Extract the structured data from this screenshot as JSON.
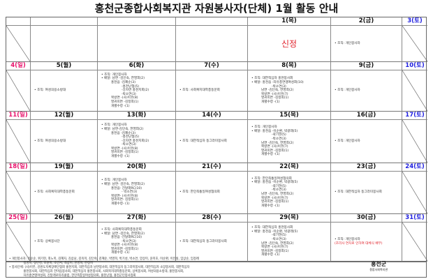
{
  "title": "홍천군종합사회복지관 자원봉사자(단체) 1월 활동 안내",
  "colors": {
    "sunday": "#e8106a",
    "saturday": "#2020e0",
    "weekday": "#111111",
    "note": "#e0202a"
  },
  "weeks": [
    {
      "days": [
        {
          "label": "",
          "c": "weekday"
        },
        {
          "label": "",
          "c": "weekday"
        },
        {
          "label": "",
          "c": "weekday"
        },
        {
          "label": "",
          "c": "weekday"
        },
        {
          "label": "1(목)",
          "c": "weekday"
        },
        {
          "label": "2(금)",
          "c": "weekday"
        },
        {
          "label": "3(토)",
          "c": "saturday"
        }
      ],
      "cells": [
        {
          "slash": true
        },
        {
          "lines": []
        },
        {
          "lines": []
        },
        {
          "lines": []
        },
        {
          "big": "신정"
        },
        {
          "lines": [
            {
              "t": "• 조직: 개인봉사자"
            }
          ]
        },
        {
          "slash": true
        }
      ]
    },
    {
      "days": [
        {
          "label": "4(일)",
          "c": "sunday"
        },
        {
          "label": "5(월)",
          "c": "weekday"
        },
        {
          "label": "6(화)",
          "c": "weekday"
        },
        {
          "label": "7(수)",
          "c": "weekday"
        },
        {
          "label": "8(목)",
          "c": "weekday"
        },
        {
          "label": "9(금)",
          "c": "weekday"
        },
        {
          "label": "10(토)",
          "c": "saturday"
        }
      ],
      "cells": [
        {
          "slash": true
        },
        {
          "lines": [
            {
              "t": "• 조직: 여성의용소방대"
            }
          ]
        },
        {
          "lines": [
            {
              "t": "• 조직: 개인봉사자"
            },
            {
              "t": " "
            },
            {
              "t": "• 배달: 남면 -김인숙, 한영희(2)"
            },
            {
              "t": "홍천읍 -김혜순(3)",
              "i": 1
            },
            {
              "t": "-홍천난협(5)",
              "i": 2
            },
            {
              "t": "-강차연 홍천지회(2)",
              "i": 2
            },
            {
              "t": "-박소연(3)",
              "i": 2
            },
            {
              "t": "북방면 -(사)이웃(8)",
              "i": 1
            },
            {
              "t": "영귀미면 -김정희(1)",
              "i": 1
            },
            {
              "t": "개별수령 -(1)",
              "i": 1
            }
          ]
        },
        {
          "lines": [
            {
              "t": "• 조직: 사회복지대학총동문회"
            }
          ]
        },
        {
          "lines": [
            {
              "t": "• 조직: 대한적십자 홍천봉사회"
            },
            {
              "t": " "
            },
            {
              "t": "• 배달: 홍천읍 -자유총연맹여성회(10)"
            },
            {
              "t": "-박소연(3)",
              "i": 2
            },
            {
              "t": "남면 -김인숙, 한영희(2)",
              "i": 1
            },
            {
              "t": "북방면 -(사)이웃(7)",
              "i": 1
            },
            {
              "t": "영귀미면 -김정희(1)",
              "i": 1
            },
            {
              "t": "개별수령 -(1)",
              "i": 1
            }
          ]
        },
        {
          "lines": [
            {
              "t": "• 조직: 개인봉사자"
            }
          ]
        },
        {
          "slash": true
        }
      ]
    },
    {
      "days": [
        {
          "label": "11(일)",
          "c": "sunday"
        },
        {
          "label": "12(월)",
          "c": "weekday"
        },
        {
          "label": "13(화)",
          "c": "weekday"
        },
        {
          "label": "14(수)",
          "c": "weekday"
        },
        {
          "label": "15(목)",
          "c": "weekday"
        },
        {
          "label": "16(금)",
          "c": "weekday"
        },
        {
          "label": "17(토)",
          "c": "saturday"
        }
      ],
      "cells": [
        {
          "slash": true
        },
        {
          "lines": [
            {
              "t": "• 조직: 여성의용소방대"
            }
          ]
        },
        {
          "lines": [
            {
              "t": "• 조직: 개인봉사자"
            },
            {
              "t": " "
            },
            {
              "t": "• 배달: 남면-김인숙, 한영희(2)"
            },
            {
              "t": "홍천읍 -김혜순(3)",
              "i": 1
            },
            {
              "t": "-홍천난협(5)",
              "i": 2
            },
            {
              "t": "-강차연 홍천지회(2)",
              "i": 2
            },
            {
              "t": "-박소연(3)",
              "i": 2
            },
            {
              "t": "북방면 -(사)이웃(8)",
              "i": 1
            },
            {
              "t": "영귀미면 -김정희(1)",
              "i": 1
            },
            {
              "t": "개별수령 -(1)",
              "i": 1
            }
          ]
        },
        {
          "lines": [
            {
              "t": "• 조직: 대한적십자 동그라미봉사회"
            }
          ]
        },
        {
          "lines": [
            {
              "t": "• 조직: 개인봉사자"
            },
            {
              "t": " "
            },
            {
              "t": "• 배달: 홍천읍 -이순환, 박광래(5)"
            },
            {
              "t": "-곽기현(5)",
              "i": 2
            },
            {
              "t": "-박소연(3)",
              "i": 2
            },
            {
              "t": "남면 -김인숙, 한영희(2)",
              "i": 1
            },
            {
              "t": "북방면 -(사)이웃(7)",
              "i": 1
            },
            {
              "t": "영귀미면 -김정희(1)",
              "i": 1
            },
            {
              "t": "개별수령 -(1)",
              "i": 1
            }
          ]
        },
        {
          "lines": [
            {
              "t": "• 조직: 개인봉사자"
            }
          ]
        },
        {
          "slash": true
        }
      ]
    },
    {
      "days": [
        {
          "label": "18(일)",
          "c": "sunday"
        },
        {
          "label": "19(월)",
          "c": "weekday"
        },
        {
          "label": "20(화)",
          "c": "weekday"
        },
        {
          "label": "21(수)",
          "c": "weekday"
        },
        {
          "label": "22(목)",
          "c": "weekday"
        },
        {
          "label": "23(금)",
          "c": "weekday"
        },
        {
          "label": "24(토)",
          "c": "saturday"
        }
      ],
      "cells": [
        {
          "slash": true
        },
        {
          "lines": [
            {
              "t": "• 조직: 사회복지대학총동문회"
            }
          ]
        },
        {
          "lines": [
            {
              "t": "• 조직: 개인봉사자"
            },
            {
              "t": " "
            },
            {
              "t": "• 배달: 남면- 김인숙, 한영희(2)"
            },
            {
              "t": "홍천읍- 진달래RC(10)",
              "i": 1
            },
            {
              "t": "- 박소연(3)",
              "i": 2
            },
            {
              "t": "북방면- (사)이웃(8)",
              "i": 1
            },
            {
              "t": "영귀미면- 김정희(1)",
              "i": 1
            },
            {
              "t": "개별수령- (1)",
              "i": 1
            }
          ]
        },
        {
          "lines": [
            {
              "t": "• 조직: 한민족통일여성협의회"
            }
          ]
        },
        {
          "lines": [
            {
              "t": "• 조직: 한민족통일여성협의회"
            },
            {
              "t": " "
            },
            {
              "t": "• 배달: 홍천읍 -이순환, 박광래(5)"
            },
            {
              "t": "-곽기현(5)",
              "i": 2
            },
            {
              "t": "-박소연(3)",
              "i": 2
            },
            {
              "t": "남면 -김인숙, 한영희(2)",
              "i": 1
            },
            {
              "t": "북방면 -(사)이웃(7)",
              "i": 1
            },
            {
              "t": "영귀미면 -김정희(1)",
              "i": 1
            },
            {
              "t": "개별수령 -(1)",
              "i": 1
            }
          ]
        },
        {
          "lines": [
            {
              "t": "• 조직: 대한적십자 동그라미봉사회"
            }
          ]
        },
        {
          "slash": true
        }
      ]
    },
    {
      "days": [
        {
          "label": "25(일)",
          "c": "sunday"
        },
        {
          "label": "26(월)",
          "c": "weekday"
        },
        {
          "label": "27(화)",
          "c": "weekday"
        },
        {
          "label": "28(수)",
          "c": "weekday"
        },
        {
          "label": "29(목)",
          "c": "weekday"
        },
        {
          "label": "30(금)",
          "c": "weekday"
        },
        {
          "label": "31(토)",
          "c": "saturday"
        }
      ],
      "cells": [
        {
          "slash": true
        },
        {
          "lines": [
            {
              "t": "• 조직: 상록봉사단"
            }
          ]
        },
        {
          "lines": [
            {
              "t": "• 조직: 사회복지대학총동문회"
            },
            {
              "t": " "
            },
            {
              "t": "• 배달: 남면 -김인숙, 한영희(2)"
            },
            {
              "t": "홍천읍 -진달래RC(10)",
              "i": 1
            },
            {
              "t": "-박소연(3)",
              "i": 2
            },
            {
              "t": "북방면 -(사)이웃(8)",
              "i": 1
            },
            {
              "t": "영귀미면 -김정희(1)",
              "i": 1
            },
            {
              "t": "개별수령 -(1)",
              "i": 1
            }
          ]
        },
        {
          "lines": [
            {
              "t": "• 조직: 대한적십자 동그라미봉사회"
            }
          ]
        },
        {
          "lines": [
            {
              "t": "• 조직: 대한적십자 홍천봉사회"
            },
            {
              "t": " "
            },
            {
              "t": "• 배달: 홍천읍 -이순환, 박광래(5)"
            },
            {
              "t": "-곽기현(5)",
              "i": 2
            },
            {
              "t": "-박소연(3)",
              "i": 2
            },
            {
              "t": "남면 -김인숙, 한영희(2)",
              "i": 1
            },
            {
              "t": "북방면 -(사)이웃(7)",
              "i": 1
            },
            {
              "t": "영귀미면 -김정희(1)",
              "i": 1
            },
            {
              "t": "개별수령 -(1)",
              "i": 1
            }
          ]
        },
        {
          "lines": [
            {
              "t": "• 조직: 개인봉사자"
            },
            {
              "t": "(조리사 연차로 인하여 대체식 배부)",
              "red": true
            }
          ]
        },
        {
          "slash": true
        }
      ]
    }
  ],
  "footer": {
    "lines": [
      "• 개인봉사자: 유순순, 위기현, 최노미, 김혜자, 김상남, 김옥미, 김인숙, 김혜순, 박영희, 박기성, 박소연, 양상미, 윤미호, 이순환, 이인실, 임상순, 임정례",
      "               정명희, 정민경, 조윤희, 조인서, 최상미, 한영희, 한정희",
      "• 봉사단체: (사)이웃, 강원도지체장애인협회 홍천지회, 대한적십자 남면봉사회, 대한적십자 동그라미봉사회, 대한적십자 소망봉사회, 대한적십자",
      "               홍천봉사회, 대한적십자 한마음봉사회, 대한적십자 홍천봉사회, 사회복지대학총동문회, 상록봉사회, 여성의용소방대, 홍천봉사회,",
      "               자유총연맹여성회, 진달래로타리클럽, 한민족통일여성협의회, 홍천난협, 홍천군민봉사협회"
    ],
    "logo": "홍천군",
    "logo_sub": "종합사회복지관"
  }
}
